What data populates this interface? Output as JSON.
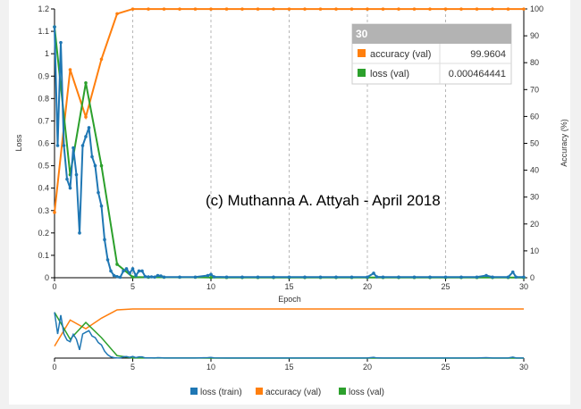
{
  "colors": {
    "loss_train": "#1f77b4",
    "accuracy_val": "#ff7f0e",
    "loss_val": "#2ca02c",
    "tooltip_header": "#b3b3b3",
    "grid": "#999999"
  },
  "watermark": "(c) Muthanna A. Attyah - April 2018",
  "tooltip": {
    "header": "30",
    "rows": [
      {
        "label": "accuracy (val)",
        "value": "99.9604",
        "color_key": "accuracy_val"
      },
      {
        "label": "loss (val)",
        "value": "0.000464441",
        "color_key": "loss_val"
      }
    ]
  },
  "chart_data": [
    {
      "type": "line",
      "xlabel": "Epoch",
      "ylabel": "Loss",
      "y2label": "Accuracy (%)",
      "xlim": [
        0,
        30
      ],
      "ylim": [
        0,
        1.2
      ],
      "y2lim": [
        0,
        100
      ],
      "xticks": [
        "0",
        "5",
        "10",
        "15",
        "20",
        "25",
        "30"
      ],
      "yticks": [
        "0",
        "0.1",
        "0.2",
        "0.3",
        "0.4",
        "0.5",
        "0.6",
        "0.7",
        "0.8",
        "0.9",
        "1",
        "1.1",
        "1.2"
      ],
      "y2ticks": [
        "0",
        "10",
        "20",
        "30",
        "40",
        "50",
        "60",
        "70",
        "80",
        "90",
        "100"
      ],
      "grid": "vertical dashed lines at x = 5, 10, 15, 20, 25",
      "legend_position": "bottom",
      "series": [
        {
          "name": "loss (train)",
          "axis": "left",
          "color_key": "loss_train",
          "x": [
            0,
            0.2,
            0.4,
            0.6,
            0.8,
            1.0,
            1.2,
            1.4,
            1.6,
            1.8,
            2.0,
            2.2,
            2.4,
            2.6,
            2.8,
            3.0,
            3.2,
            3.4,
            3.6,
            3.8,
            4.0,
            4.2,
            4.4,
            4.6,
            4.8,
            5.0,
            5.2,
            5.4,
            5.6,
            5.8,
            6.0,
            6.2,
            6.4,
            6.6,
            6.8,
            7.0,
            8.0,
            9.0,
            9.8,
            10.0,
            10.2,
            11.0,
            12.0,
            13.0,
            14.0,
            15.0,
            16.0,
            17.0,
            18.0,
            19.0,
            20.0,
            20.4,
            20.6,
            21.0,
            22.0,
            23.0,
            24.0,
            25.0,
            26.0,
            27.0,
            27.6,
            28.0,
            29.0,
            29.3,
            29.5,
            30.0
          ],
          "y": [
            1.12,
            0.59,
            1.05,
            0.59,
            0.44,
            0.4,
            0.58,
            0.46,
            0.2,
            0.59,
            0.63,
            0.67,
            0.54,
            0.5,
            0.38,
            0.32,
            0.17,
            0.08,
            0.03,
            0.01,
            0.005,
            0.002,
            0.03,
            0.04,
            0.02,
            0.04,
            0.01,
            0.03,
            0.03,
            0.005,
            0.004,
            0.004,
            0.003,
            0.01,
            0.008,
            0.003,
            0.003,
            0.003,
            0.01,
            0.015,
            0.004,
            0.003,
            0.003,
            0.003,
            0.003,
            0.003,
            0.003,
            0.003,
            0.003,
            0.003,
            0.003,
            0.02,
            0.004,
            0.003,
            0.003,
            0.003,
            0.003,
            0.003,
            0.003,
            0.003,
            0.01,
            0.003,
            0.003,
            0.025,
            0.003,
            0.003
          ]
        },
        {
          "name": "accuracy (val)",
          "axis": "right",
          "color_key": "accuracy_val",
          "x": [
            0,
            1,
            2,
            3,
            4,
            5,
            6,
            7,
            8,
            9,
            10,
            11,
            12,
            13,
            14,
            15,
            16,
            17,
            18,
            19,
            20,
            21,
            22,
            23,
            24,
            25,
            26,
            27,
            28,
            29,
            30
          ],
          "y": [
            24.3,
            77.4,
            59.8,
            81.3,
            98.2,
            99.96,
            99.96,
            99.96,
            99.96,
            99.96,
            99.96,
            99.96,
            99.96,
            99.96,
            99.96,
            99.96,
            99.96,
            99.96,
            99.96,
            99.96,
            99.96,
            99.96,
            99.96,
            99.96,
            99.96,
            99.96,
            99.96,
            99.96,
            99.96,
            99.96,
            99.9604
          ]
        },
        {
          "name": "loss (val)",
          "axis": "left",
          "color_key": "loss_val",
          "x": [
            0,
            1,
            2,
            3,
            4,
            5,
            6,
            7,
            8,
            9,
            10,
            11,
            12,
            13,
            14,
            15,
            16,
            17,
            18,
            19,
            20,
            21,
            22,
            23,
            24,
            25,
            26,
            27,
            28,
            29,
            30
          ],
          "y": [
            1.12,
            0.46,
            0.87,
            0.5,
            0.06,
            0.003,
            0.002,
            0.002,
            0.002,
            0.002,
            0.001,
            0.001,
            0.001,
            0.001,
            0.001,
            0.001,
            0.001,
            0.001,
            0.001,
            0.001,
            0.001,
            0.001,
            0.001,
            0.001,
            0.001,
            0.001,
            0.001,
            0.001,
            0.001,
            0.001,
            0.000464441
          ]
        }
      ]
    },
    {
      "type": "line",
      "role": "overview",
      "xlim": [
        0,
        30
      ],
      "xticks": [
        "0",
        "5",
        "10",
        "15",
        "20",
        "25",
        "30"
      ]
    }
  ]
}
